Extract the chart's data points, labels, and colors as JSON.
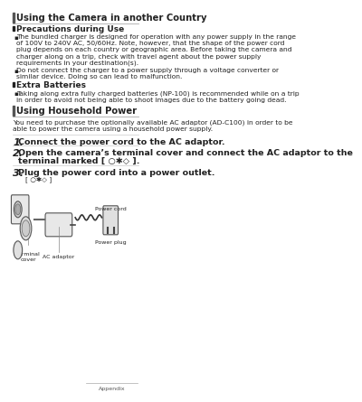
{
  "bg_color": "#ffffff",
  "header_bar_color": "#555555",
  "header_text": "Using the Camera in another Country",
  "section1_title": "Precautions during Use",
  "bullet1_lines": [
    "The bundled charger is designed for operation with any power supply in the range",
    "of 100V to 240V AC, 50/60Hz. Note, however, that the shape of the power cord",
    "plug depends on each country or geographic area. Before taking the camera and",
    "charger along on a trip, check with travel agent about the power supply",
    "requirements in your destination(s)."
  ],
  "bullet2_lines": [
    "Do not connect the charger to a power supply through a voltage converter or",
    "similar device. Doing so can lead to malfunction."
  ],
  "section2_title": "Extra Batteries",
  "bullet3_lines": [
    "Taking along extra fully charged batteries (NP-100) is recommended while on a trip",
    "in order to avoid not being able to shoot images due to the battery going dead."
  ],
  "header2_text": "Using Household Power",
  "intro_lines": [
    "You need to purchase the optionally available AC adaptor (AD-C100) in order to be",
    "able to power the camera using a household power supply."
  ],
  "step1_text": "Connect the power cord to the AC adaptor.",
  "step2_line1": "Open the camera’s terminal cover and connect the AC adaptor to the",
  "step2_line2": "terminal marked [ ○✱◇ ].",
  "step3_text": "Plug the power cord into a power outlet.",
  "step3_symbol": "[ ○✱◇ ]",
  "label_terminal": "Terminal\ncover",
  "label_ac": "AC adaptor",
  "label_power_cord": "Power cord",
  "label_power_plug": "Power plug",
  "footer_text": "Appendix",
  "text_color": "#222222",
  "bullet_color": "#333333",
  "line_color": "#aaaaaa",
  "step_line_color": "#cccccc"
}
